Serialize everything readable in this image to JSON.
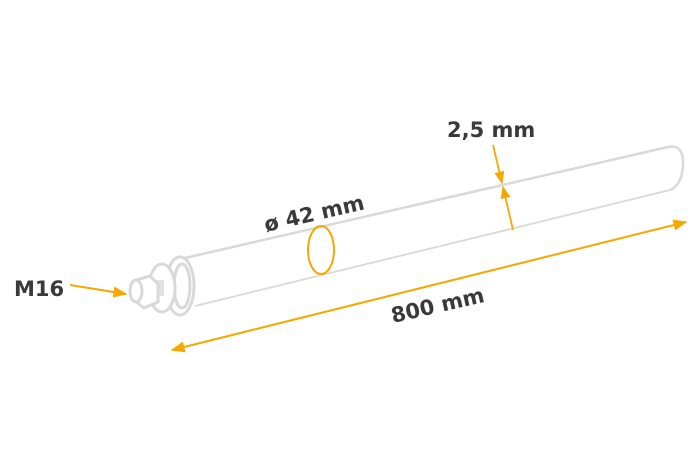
{
  "labels": {
    "thread": "M16",
    "diameter": "ø 42 mm",
    "wall_thickness": "2,5 mm",
    "length": "800 mm"
  },
  "colors": {
    "accent": "#F5A800",
    "outline": "#D9D9D9",
    "text": "#3A3A3A"
  }
}
